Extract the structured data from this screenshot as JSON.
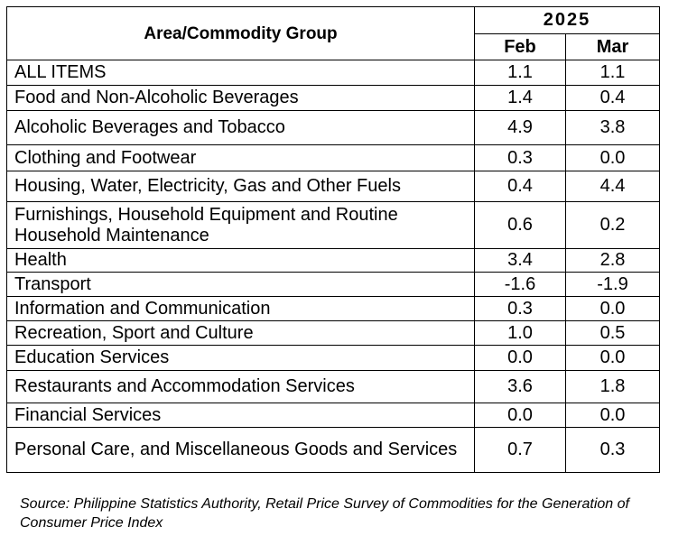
{
  "table": {
    "header": {
      "group_label": "Area/Commodity Group",
      "year": "2025",
      "months": [
        "Feb",
        "Mar"
      ]
    },
    "rows": [
      {
        "group": "ALL ITEMS",
        "feb": "1.1",
        "mar": "1.1"
      },
      {
        "group": "Food and Non-Alcoholic Beverages",
        "feb": "1.4",
        "mar": "0.4"
      },
      {
        "group": "Alcoholic Beverages and Tobacco",
        "feb": "4.9",
        "mar": "3.8"
      },
      {
        "group": "Clothing and Footwear",
        "feb": "0.3",
        "mar": "0.0"
      },
      {
        "group": "Housing, Water, Electricity, Gas and Other Fuels",
        "feb": "0.4",
        "mar": "4.4"
      },
      {
        "group": "Furnishings, Household Equipment and Routine Household Maintenance",
        "feb": "0.6",
        "mar": "0.2"
      },
      {
        "group": "Health",
        "feb": "3.4",
        "mar": "2.8"
      },
      {
        "group": "Transport",
        "feb": "-1.6",
        "mar": "-1.9"
      },
      {
        "group": "Information and Communication",
        "feb": "0.3",
        "mar": "0.0"
      },
      {
        "group": "Recreation, Sport and Culture",
        "feb": "1.0",
        "mar": "0.5"
      },
      {
        "group": "Education Services",
        "feb": "0.0",
        "mar": "0.0"
      },
      {
        "group": "Restaurants and Accommodation Services",
        "feb": "3.6",
        "mar": "1.8"
      },
      {
        "group": "Financial Services",
        "feb": "0.0",
        "mar": "0.0"
      },
      {
        "group": "Personal Care, and Miscellaneous Goods and Services",
        "feb": "0.7",
        "mar": "0.3"
      }
    ]
  },
  "source_note": "Source: Philippine Statistics Authority, Retail Price Survey of Commodities for the Generation of Consumer Price Index"
}
